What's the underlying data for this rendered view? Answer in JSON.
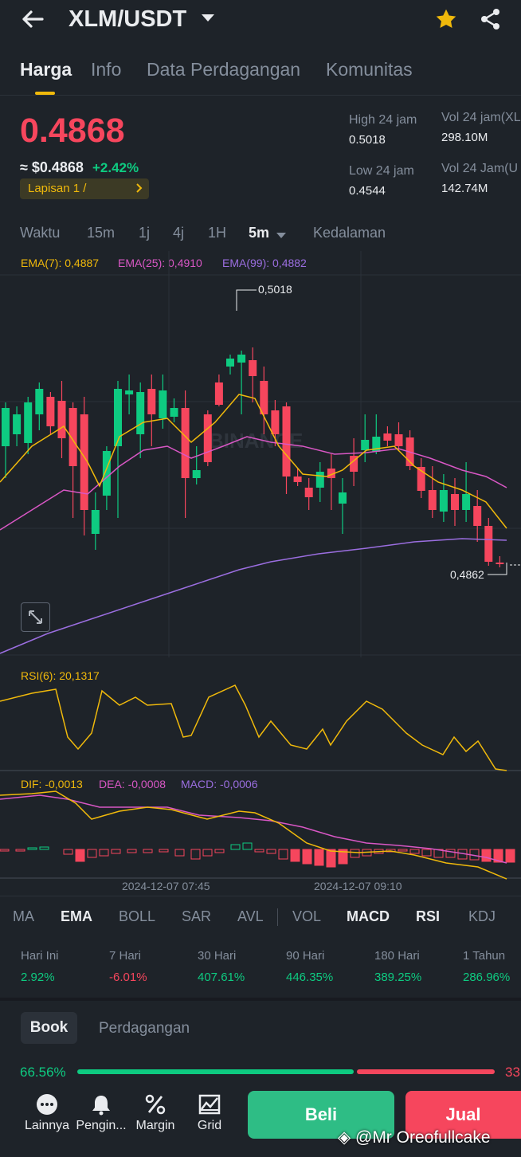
{
  "header": {
    "pair": "XLM/USDT"
  },
  "tabs": [
    "Harga",
    "Info",
    "Data Perdagangan",
    "Komunitas"
  ],
  "price": {
    "last": "0.4868",
    "usd": "≈ $0.4868",
    "change": "+2.42%",
    "layer_badge": "Lapisan 1 /"
  },
  "stats": {
    "high_label": "High 24 jam",
    "high": "0.5018",
    "low_label": "Low 24 jam",
    "low": "0.4544",
    "vol1_label": "Vol 24 jam(XL",
    "vol1": "298.10M",
    "vol2_label": "Vol 24 Jam(U",
    "vol2": "142.74M"
  },
  "intervals": [
    "Waktu",
    "15m",
    "1j",
    "4j",
    "1H",
    "5m",
    "Kedalaman"
  ],
  "indicators": {
    "ema7": "EMA(7): 0,4887",
    "ema25": "EMA(25): 0,4910",
    "ema99": "EMA(99): 0,4882",
    "rsi": "RSI(6): 20,1317",
    "dif": "DIF: -0,0013",
    "dea": "DEA: -0,0008",
    "macd": "MACD: -0,0006"
  },
  "chart_labels": {
    "high_mark": "0,5018",
    "low_mark": "0,4862",
    "time1": "2024-12-07 07:45",
    "time2": "2024-12-07 09:10",
    "watermark": "BINANCE"
  },
  "indicator_tabs": [
    "MA",
    "EMA",
    "BOLL",
    "SAR",
    "AVL",
    "VOL",
    "MACD",
    "RSI",
    "KDJ"
  ],
  "performance": [
    {
      "label": "Hari Ini",
      "value": "2.92%"
    },
    {
      "label": "7 Hari",
      "value": "-6.01%"
    },
    {
      "label": "30 Hari",
      "value": "407.61%"
    },
    {
      "label": "90 Hari",
      "value": "446.35%"
    },
    {
      "label": "180 Hari",
      "value": "389.25%"
    },
    {
      "label": "1 Tahun",
      "value": "286.96%"
    }
  ],
  "book": {
    "tab_book": "Book",
    "tab_trades": "Perdagangan",
    "buy_pct": "66.56%",
    "sell_pct": "33",
    "buy_ratio": 0.6656
  },
  "bottom": {
    "more": "Lainnya",
    "alert": "Pengin...",
    "margin": "Margin",
    "grid": "Grid",
    "buy": "Beli",
    "sell": "Jual"
  },
  "watermark": "@Mr Oreofullcake",
  "colors": {
    "up": "#0ecb81",
    "down": "#f6465d",
    "ema7": "#f0b90b",
    "ema25": "#d957c5",
    "ema99": "#9b6ee0"
  },
  "icons": [
    "back-arrow-icon",
    "chevron-down-icon",
    "star-icon",
    "share-icon",
    "chevron-right-icon",
    "expand-icon",
    "more-icon",
    "bell-icon",
    "percent-icon",
    "grid-icon"
  ]
}
